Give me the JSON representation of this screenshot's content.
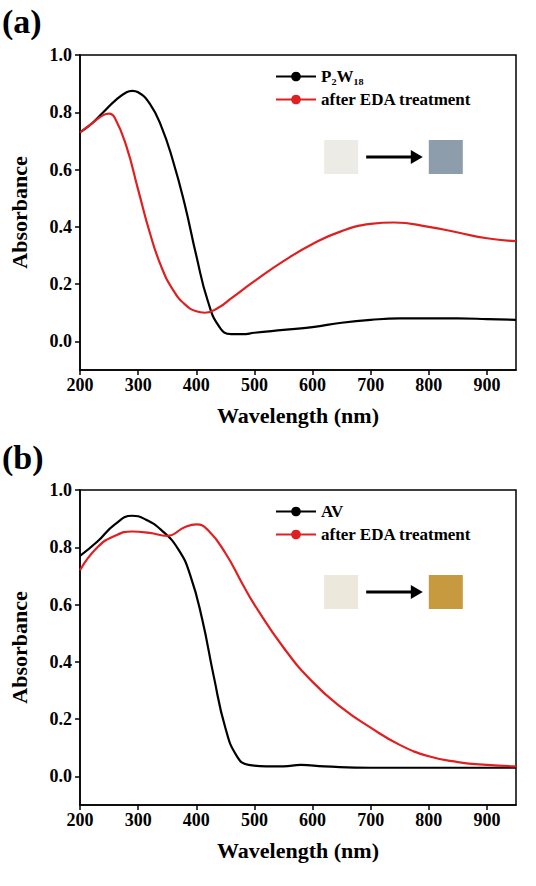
{
  "chart_data": [
    {
      "type": "line",
      "panel_label": "(a)",
      "x_label": "Wavelength (nm)",
      "y_label": "Absorbance",
      "xlim": [
        200,
        950
      ],
      "xticks": [
        200,
        300,
        400,
        500,
        600,
        700,
        800,
        900
      ],
      "ylim": [
        -0.1,
        1.0
      ],
      "yticks": [
        {
          "value": 0,
          "label": "0.0"
        },
        0.2,
        0.4,
        0.6,
        0.8,
        {
          "value": 1,
          "label": "1.0"
        }
      ],
      "grid": false,
      "legend": "upper right",
      "series": [
        {
          "name": "P₂W₁₈",
          "color": "#000000",
          "x": [
            200,
            220,
            240,
            260,
            280,
            290,
            300,
            320,
            340,
            360,
            380,
            400,
            420,
            440,
            460,
            480,
            500,
            550,
            600,
            650,
            700,
            750,
            800,
            850,
            900,
            950
          ],
          "values": [
            0.73,
            0.76,
            0.8,
            0.84,
            0.87,
            0.875,
            0.87,
            0.83,
            0.75,
            0.63,
            0.48,
            0.3,
            0.14,
            0.05,
            0.025,
            0.025,
            0.03,
            0.04,
            0.05,
            0.065,
            0.075,
            0.08,
            0.08,
            0.08,
            0.078,
            0.075
          ]
        },
        {
          "name": "after EDA treatment",
          "color": "#e02020",
          "x": [
            200,
            220,
            240,
            250,
            260,
            280,
            300,
            320,
            340,
            360,
            380,
            400,
            415,
            440,
            460,
            500,
            550,
            600,
            650,
            700,
            740,
            800,
            850,
            900,
            950
          ],
          "values": [
            0.73,
            0.76,
            0.79,
            0.795,
            0.78,
            0.68,
            0.53,
            0.38,
            0.26,
            0.18,
            0.13,
            0.105,
            0.1,
            0.12,
            0.15,
            0.21,
            0.28,
            0.34,
            0.385,
            0.41,
            0.415,
            0.4,
            0.38,
            0.36,
            0.35
          ]
        }
      ]
    },
    {
      "type": "line",
      "panel_label": "(b)",
      "x_label": "Wavelength (nm)",
      "y_label": "Absorbance",
      "xlim": [
        200,
        950
      ],
      "xticks": [
        200,
        300,
        400,
        500,
        600,
        700,
        800,
        900
      ],
      "ylim": [
        -0.1,
        1.0
      ],
      "yticks": [
        {
          "value": 0,
          "label": "0.0"
        },
        0.2,
        0.4,
        0.6,
        0.8,
        {
          "value": 1,
          "label": "1.0"
        }
      ],
      "grid": false,
      "legend": "upper right",
      "series": [
        {
          "name": "AV",
          "color": "#000000",
          "x": [
            200,
            230,
            260,
            290,
            310,
            340,
            370,
            390,
            410,
            430,
            450,
            470,
            490,
            520,
            550,
            580,
            620,
            700,
            800,
            900,
            950
          ],
          "values": [
            0.77,
            0.82,
            0.88,
            0.91,
            0.9,
            0.86,
            0.79,
            0.7,
            0.55,
            0.35,
            0.17,
            0.07,
            0.04,
            0.035,
            0.035,
            0.04,
            0.035,
            0.03,
            0.03,
            0.03,
            0.03
          ]
        },
        {
          "name": "after EDA treatment",
          "color": "#e02020",
          "x": [
            200,
            230,
            260,
            290,
            320,
            350,
            380,
            400,
            420,
            450,
            480,
            500,
            550,
            600,
            650,
            700,
            750,
            800,
            850,
            900,
            950
          ],
          "values": [
            0.72,
            0.8,
            0.84,
            0.855,
            0.85,
            0.84,
            0.87,
            0.88,
            0.86,
            0.78,
            0.67,
            0.6,
            0.45,
            0.33,
            0.24,
            0.17,
            0.11,
            0.07,
            0.05,
            0.04,
            0.035
          ]
        }
      ]
    }
  ]
}
